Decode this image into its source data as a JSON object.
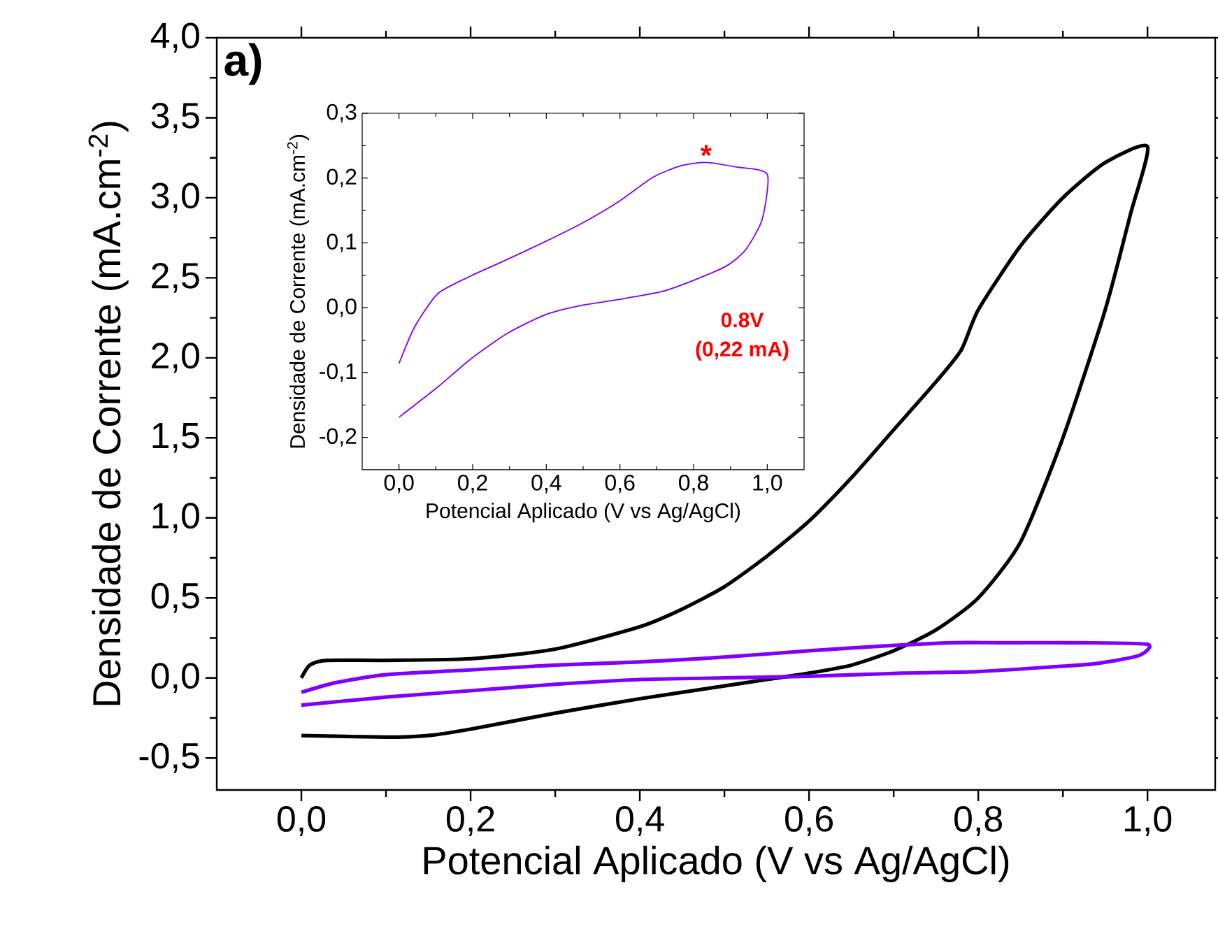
{
  "chart_data": [
    {
      "type": "line",
      "xlabel": "Potencial Aplicado (V vs Ag/AgCl)",
      "ylabel": "Densidade de Corrente (mA.cm$^{-2}$)",
      "xlim": [
        -0.1,
        1.08
      ],
      "ylim": [
        -0.7,
        4.0
      ],
      "xticks": [
        {
          "value": 0,
          "label": "0,0"
        },
        {
          "value": 0.2,
          "label": "0,2"
        },
        {
          "value": 0.4,
          "label": "0,4"
        },
        {
          "value": 0.6,
          "label": "0,6"
        },
        {
          "value": 0.8,
          "label": "0,8"
        },
        {
          "value": 1.0,
          "label": "1,0"
        }
      ],
      "yticks": [
        {
          "value": -0.5,
          "label": "-0,5"
        },
        {
          "value": 0,
          "label": "0,0"
        },
        {
          "value": 0.5,
          "label": "0,5"
        },
        {
          "value": 1.0,
          "label": "1,0"
        },
        {
          "value": 1.5,
          "label": "1,5"
        },
        {
          "value": 2.0,
          "label": "2,0"
        },
        {
          "value": 2.5,
          "label": "2,5"
        },
        {
          "value": 3.0,
          "label": "3,0"
        },
        {
          "value": 3.5,
          "label": "3,5"
        },
        {
          "value": 4.0,
          "label": "4,0"
        }
      ],
      "annotations": [
        "a)"
      ],
      "series": [
        {
          "color": "#000000",
          "x": [
            0,
            0.01,
            0.03,
            0.1,
            0.2,
            0.3,
            0.4,
            0.45,
            0.5,
            0.55,
            0.6,
            0.65,
            0.7,
            0.75,
            0.78,
            0.8,
            0.85,
            0.9,
            0.95,
            1.0,
            0.98,
            0.95,
            0.9,
            0.85,
            0.8,
            0.75,
            0.7,
            0.65,
            0.6,
            0.55,
            0.5,
            0.4,
            0.3,
            0.2,
            0.15,
            0.1,
            0
          ],
          "values": [
            0.0,
            0.08,
            0.11,
            0.11,
            0.12,
            0.18,
            0.32,
            0.43,
            0.57,
            0.76,
            0.98,
            1.25,
            1.55,
            1.85,
            2.05,
            2.3,
            2.7,
            3.0,
            3.22,
            3.32,
            2.9,
            2.3,
            1.5,
            0.85,
            0.5,
            0.3,
            0.17,
            0.08,
            0.03,
            -0.01,
            -0.05,
            -0.13,
            -0.22,
            -0.32,
            -0.36,
            -0.37,
            -0.36
          ]
        },
        {
          "color": "#7f00ff",
          "x": [
            0,
            0.04,
            0.1,
            0.2,
            0.3,
            0.4,
            0.5,
            0.6,
            0.69,
            0.77,
            0.83,
            0.92,
            1.0,
            0.99,
            0.94,
            0.89,
            0.8,
            0.71,
            0.6,
            0.5,
            0.4,
            0.3,
            0.2,
            0.1,
            0
          ],
          "values": [
            -0.09,
            -0.03,
            0.02,
            0.05,
            0.08,
            0.1,
            0.13,
            0.17,
            0.2,
            0.22,
            0.22,
            0.22,
            0.21,
            0.14,
            0.09,
            0.07,
            0.04,
            0.03,
            0.01,
            0.0,
            -0.01,
            -0.04,
            -0.08,
            -0.12,
            -0.17
          ]
        }
      ]
    },
    {
      "type": "line",
      "xlabel": "Potencial Aplicado (V vs Ag/AgCl)",
      "ylabel": "Densidade de Corrente (mA.cm$^{-2}$)",
      "xlim": [
        -0.1,
        1.1
      ],
      "ylim": [
        -0.25,
        0.3
      ],
      "xticks": [
        {
          "value": 0,
          "label": "0,0"
        },
        {
          "value": 0.2,
          "label": "0,2"
        },
        {
          "value": 0.4,
          "label": "0,4"
        },
        {
          "value": 0.6,
          "label": "0,6"
        },
        {
          "value": 0.8,
          "label": "0,8"
        },
        {
          "value": 1.0,
          "label": "1,0"
        }
      ],
      "yticks": [
        {
          "value": -0.2,
          "label": "-0,2"
        },
        {
          "value": -0.1,
          "label": "-0,1"
        },
        {
          "value": 0,
          "label": "0,0"
        },
        {
          "value": 0.1,
          "label": "0,1"
        },
        {
          "value": 0.2,
          "label": "0,2"
        },
        {
          "value": 0.3,
          "label": "0,3"
        }
      ],
      "annotations": [
        {
          "text": "*",
          "x": 0.834,
          "y": 0.224
        },
        "0.8V",
        "(0,22 mA)"
      ],
      "series": [
        {
          "color": "#7f00ff",
          "x": [
            0,
            0.043,
            0.106,
            0.195,
            0.296,
            0.397,
            0.499,
            0.6,
            0.689,
            0.765,
            0.834,
            0.916,
            1.0,
            0.986,
            0.942,
            0.891,
            0.803,
            0.714,
            0.6,
            0.499,
            0.397,
            0.296,
            0.195,
            0.106,
            0
          ],
          "values": [
            -0.086,
            -0.029,
            0.022,
            0.049,
            0.075,
            0.102,
            0.131,
            0.165,
            0.201,
            0.219,
            0.224,
            0.217,
            0.206,
            0.136,
            0.09,
            0.065,
            0.043,
            0.025,
            0.013,
            0.004,
            -0.011,
            -0.039,
            -0.079,
            -0.122,
            -0.169
          ]
        }
      ]
    }
  ]
}
